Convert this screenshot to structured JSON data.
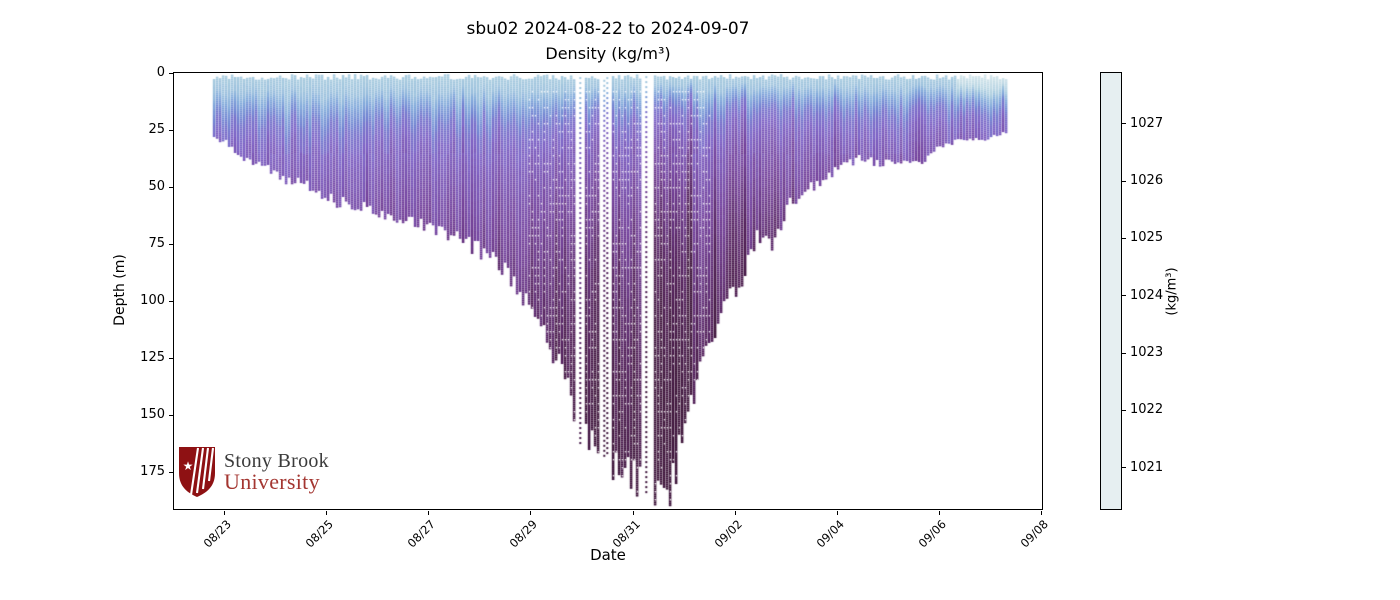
{
  "chart_data": {
    "type": "scatter",
    "description": "Glider time-depth section of seawater density; vertical profile columns colored by density",
    "title": "sbu02 2024-08-22 to 2024-09-07",
    "subtitle": "Density (kg/m³)",
    "xlabel": "Date",
    "ylabel": "Depth (m)",
    "x_tick_labels": [
      "08/23",
      "08/25",
      "08/27",
      "08/29",
      "08/31",
      "09/02",
      "09/04",
      "09/06",
      "09/08"
    ],
    "x_tick_days": [
      1,
      3,
      5,
      7,
      9,
      11,
      13,
      15,
      17
    ],
    "xlim_days": [
      0,
      17
    ],
    "y_ticks": [
      0,
      25,
      50,
      75,
      100,
      125,
      150,
      175
    ],
    "ylim": [
      0,
      191
    ],
    "grid": false,
    "colorbar": {
      "label": "(kg/m³)",
      "ticks": [
        1027,
        1026,
        1025,
        1024,
        1023,
        1022,
        1021
      ],
      "vmin": 1020.3,
      "vmax": 1027.9,
      "colormap": [
        [
          1020.3,
          "#e6eff1"
        ],
        [
          1021.0,
          "#d0e3e9"
        ],
        [
          1022.0,
          "#a6cade"
        ],
        [
          1023.0,
          "#7fa8da"
        ],
        [
          1024.0,
          "#6d80d0"
        ],
        [
          1025.0,
          "#7a5ec4"
        ],
        [
          1026.0,
          "#6f3b97"
        ],
        [
          1027.0,
          "#4e1a55"
        ],
        [
          1027.9,
          "#371031"
        ]
      ]
    },
    "data_start_day": 0.76,
    "data_end_day": 16.3,
    "envelope_day_depth": [
      [
        0.76,
        27
      ],
      [
        1.02,
        30
      ],
      [
        1.31,
        36
      ],
      [
        1.74,
        40
      ],
      [
        2.19,
        46
      ],
      [
        2.68,
        50
      ],
      [
        3.11,
        56
      ],
      [
        3.56,
        58
      ],
      [
        4.01,
        60
      ],
      [
        4.44,
        63
      ],
      [
        4.87,
        66
      ],
      [
        5.31,
        70
      ],
      [
        5.71,
        74
      ],
      [
        6.1,
        79
      ],
      [
        6.49,
        86
      ],
      [
        6.78,
        96
      ],
      [
        7.07,
        108
      ],
      [
        7.37,
        122
      ],
      [
        7.66,
        135
      ],
      [
        7.91,
        155
      ],
      [
        8.19,
        162
      ],
      [
        8.5,
        170
      ],
      [
        8.81,
        172
      ],
      [
        9.13,
        178
      ],
      [
        9.36,
        183
      ],
      [
        9.55,
        186
      ],
      [
        9.67,
        186
      ],
      [
        9.87,
        165
      ],
      [
        10.06,
        148
      ],
      [
        10.3,
        125
      ],
      [
        10.57,
        110
      ],
      [
        10.84,
        99
      ],
      [
        11.12,
        88
      ],
      [
        11.41,
        70
      ],
      [
        11.7,
        75
      ],
      [
        12.02,
        57
      ],
      [
        12.33,
        52
      ],
      [
        12.64,
        47
      ],
      [
        13.03,
        40
      ],
      [
        13.42,
        37
      ],
      [
        13.82,
        39
      ],
      [
        14.21,
        37
      ],
      [
        14.56,
        40
      ],
      [
        14.87,
        34
      ],
      [
        15.18,
        30
      ],
      [
        15.5,
        28
      ],
      [
        15.81,
        29
      ],
      [
        16.08,
        27
      ],
      [
        16.3,
        26
      ]
    ],
    "density_profile_depth_value": [
      [
        0,
        1021.9
      ],
      [
        8,
        1022.3
      ],
      [
        14,
        1023.3
      ],
      [
        22,
        1024.5
      ],
      [
        35,
        1025.2
      ],
      [
        60,
        1025.9
      ],
      [
        100,
        1026.7
      ],
      [
        140,
        1027.25
      ],
      [
        190,
        1027.7
      ]
    ],
    "gaps_days": [
      [
        7.83,
        8.02
      ],
      [
        8.33,
        8.55
      ],
      [
        9.13,
        9.35
      ]
    ],
    "sparse_profile_days": [
      7.91,
      8.4,
      8.47,
      9.22
    ],
    "surface_pale_after_day": 15.3
  },
  "logo": {
    "line1": "Stony Brook",
    "line2": "University",
    "shield_color": "#8e1113",
    "star": "★"
  }
}
